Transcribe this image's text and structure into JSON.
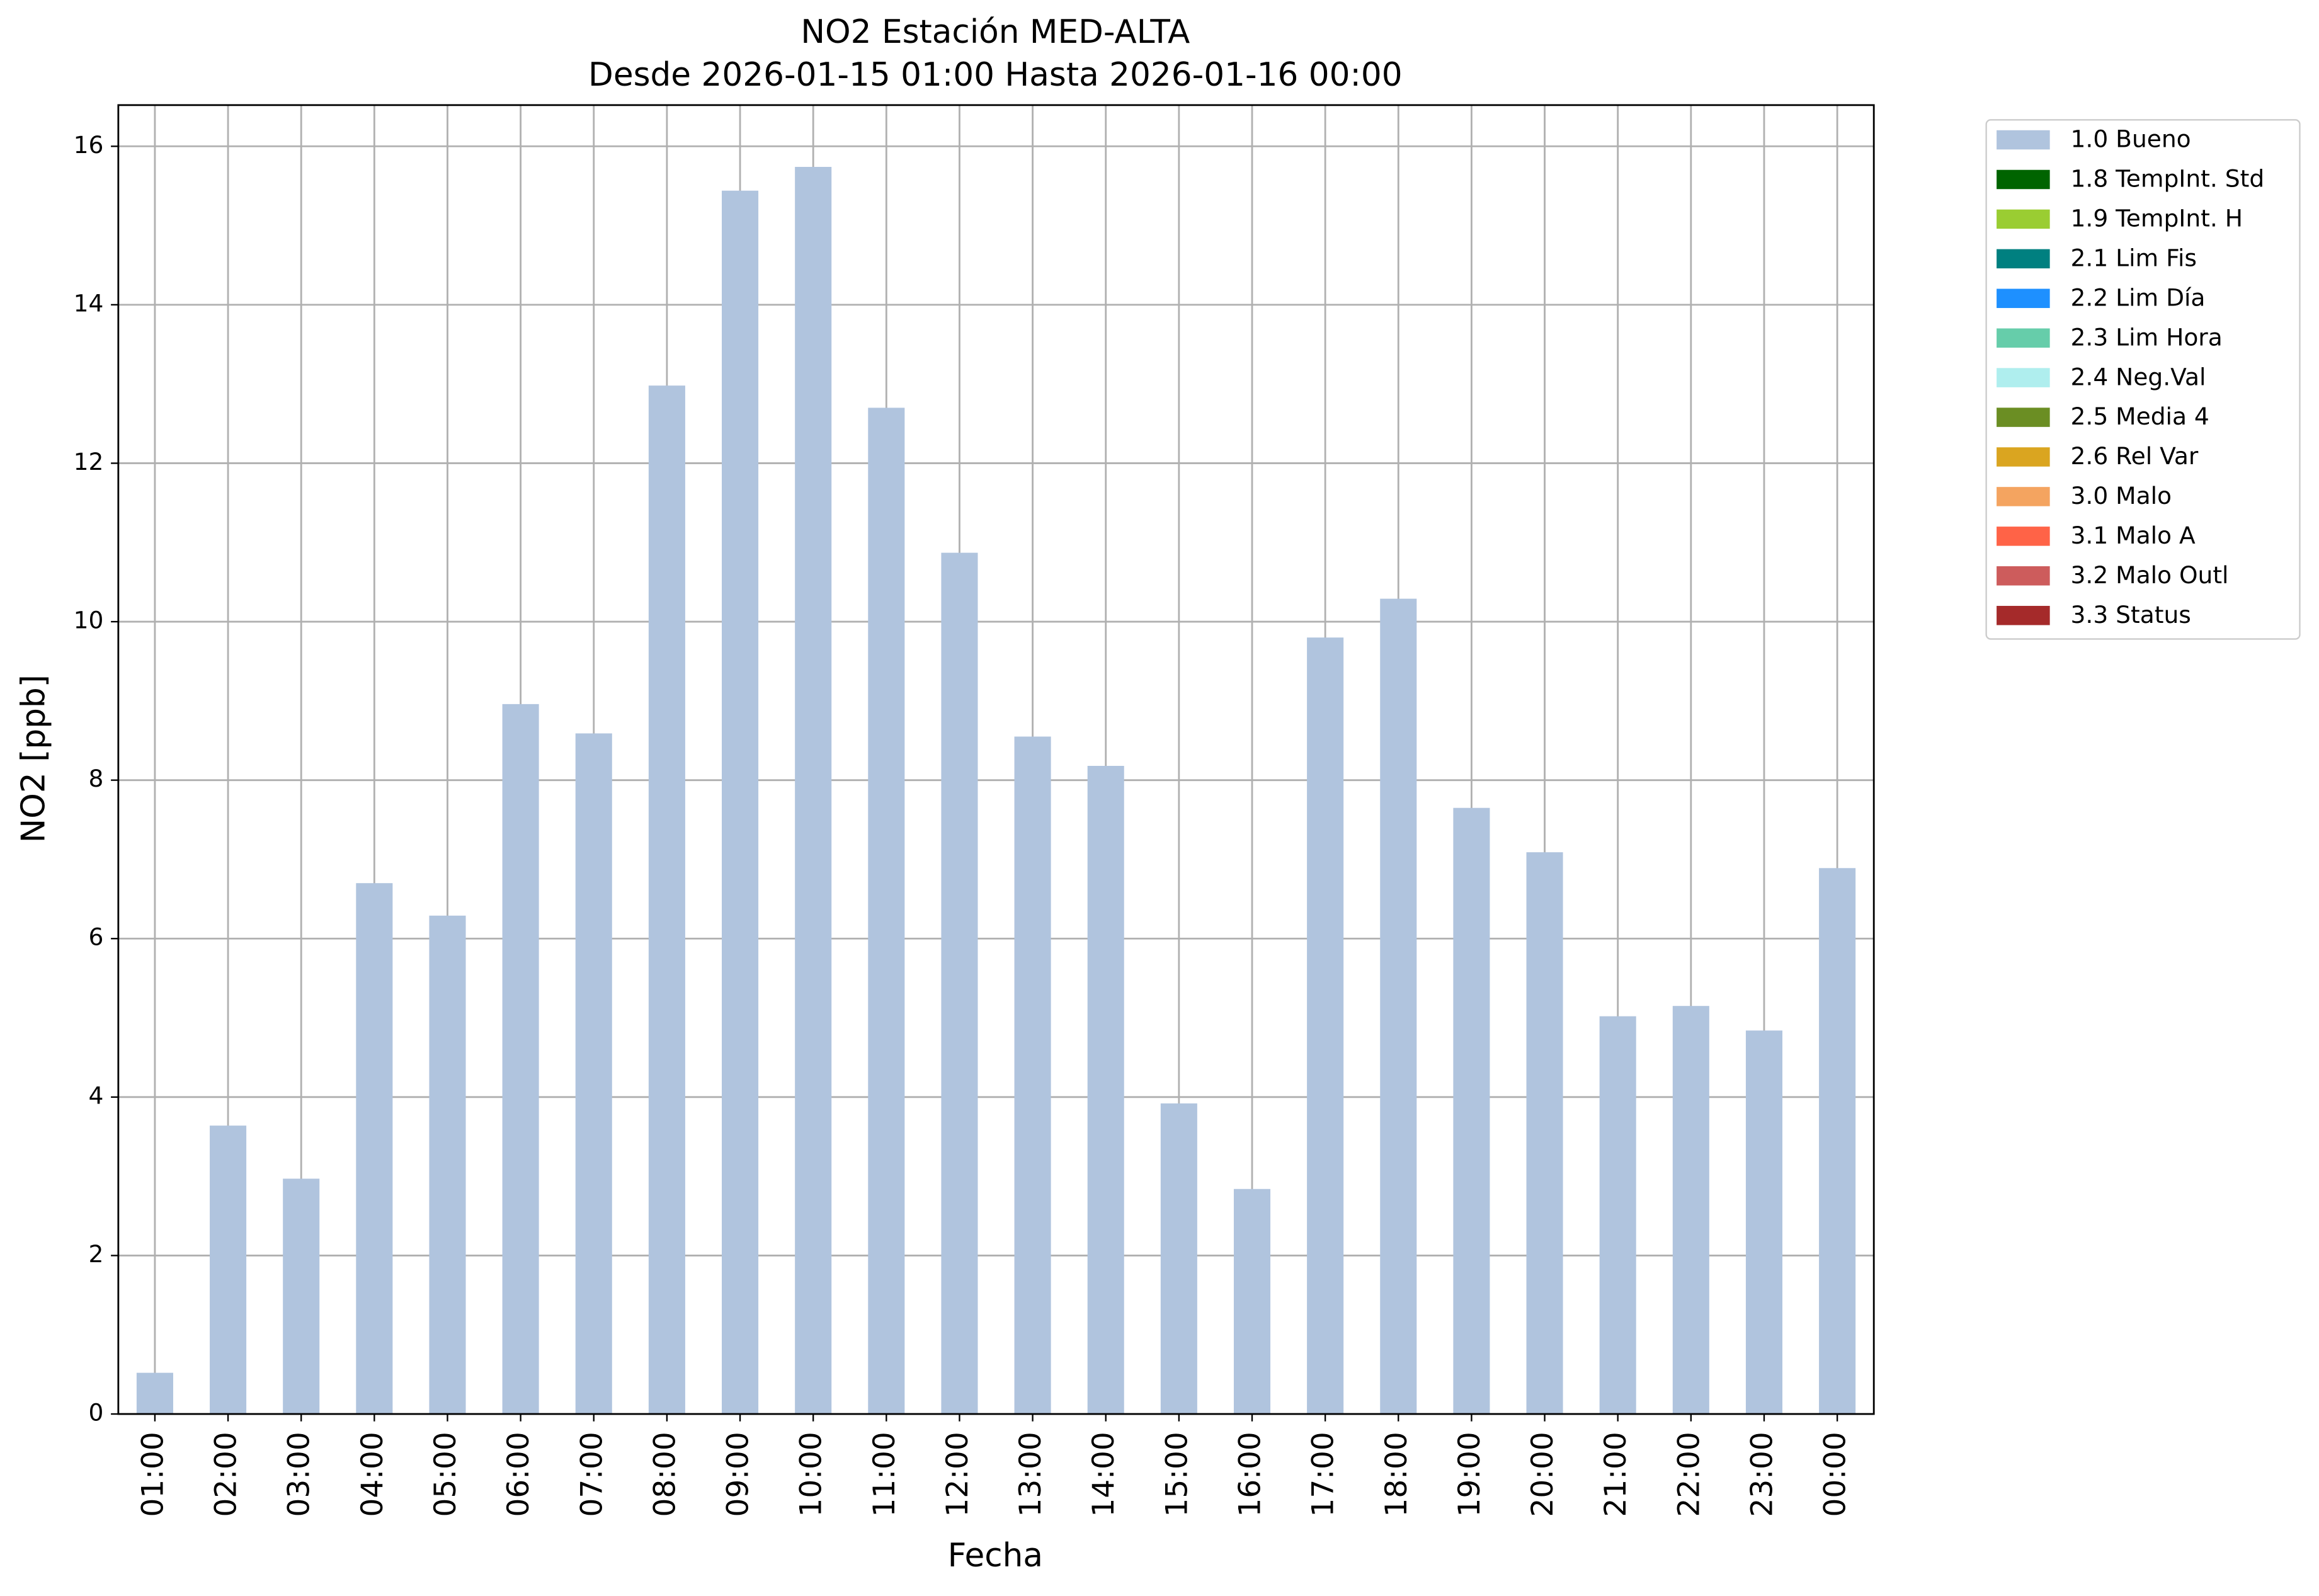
{
  "chart_data": {
    "type": "bar",
    "title": "NO2 Estación MED-ALTA",
    "subtitle": "Desde 2026-01-15 01:00 Hasta 2026-01-16 00:00",
    "x_label": "Fecha",
    "y_label": "NO2 [ppb]",
    "categories": [
      "01:00",
      "02:00",
      "03:00",
      "04:00",
      "05:00",
      "06:00",
      "07:00",
      "08:00",
      "09:00",
      "10:00",
      "11:00",
      "12:00",
      "13:00",
      "14:00",
      "15:00",
      "16:00",
      "17:00",
      "18:00",
      "19:00",
      "20:00",
      "21:00",
      "22:00",
      "23:00",
      "00:00"
    ],
    "series": [
      {
        "name": "1.0 Bueno",
        "color": "#b0c4de",
        "values": [
          0.52,
          3.64,
          2.97,
          6.7,
          6.29,
          8.96,
          8.59,
          12.98,
          15.44,
          15.74,
          12.7,
          10.87,
          8.55,
          8.18,
          3.92,
          2.84,
          9.8,
          10.29,
          7.65,
          7.09,
          5.02,
          5.15,
          4.84,
          6.89
        ]
      },
      {
        "name": "1.8 TempInt. Std",
        "color": "#006400",
        "values": [
          0,
          0,
          0,
          0,
          0,
          0,
          0,
          0,
          0,
          0,
          0,
          0,
          0,
          0,
          0,
          0,
          0,
          0,
          0,
          0,
          0,
          0,
          0,
          0
        ]
      },
      {
        "name": "1.9 TempInt. H",
        "color": "#9acd32",
        "values": [
          0,
          0,
          0,
          0,
          0,
          0,
          0,
          0,
          0,
          0,
          0,
          0,
          0,
          0,
          0,
          0,
          0,
          0,
          0,
          0,
          0,
          0,
          0,
          0
        ]
      },
      {
        "name": "2.1 Lim Fis",
        "color": "#008080",
        "values": [
          0,
          0,
          0,
          0,
          0,
          0,
          0,
          0,
          0,
          0,
          0,
          0,
          0,
          0,
          0,
          0,
          0,
          0,
          0,
          0,
          0,
          0,
          0,
          0
        ]
      },
      {
        "name": "2.2 Lim Día",
        "color": "#1e90ff",
        "values": [
          0,
          0,
          0,
          0,
          0,
          0,
          0,
          0,
          0,
          0,
          0,
          0,
          0,
          0,
          0,
          0,
          0,
          0,
          0,
          0,
          0,
          0,
          0,
          0
        ]
      },
      {
        "name": "2.3 Lim Hora",
        "color": "#66cdaa",
        "values": [
          0,
          0,
          0,
          0,
          0,
          0,
          0,
          0,
          0,
          0,
          0,
          0,
          0,
          0,
          0,
          0,
          0,
          0,
          0,
          0,
          0,
          0,
          0,
          0
        ]
      },
      {
        "name": "2.4 Neg.Val",
        "color": "#afeeee",
        "values": [
          0,
          0,
          0,
          0,
          0,
          0,
          0,
          0,
          0,
          0,
          0,
          0,
          0,
          0,
          0,
          0,
          0,
          0,
          0,
          0,
          0,
          0,
          0,
          0
        ]
      },
      {
        "name": "2.5 Media 4",
        "color": "#6b8e23",
        "values": [
          0,
          0,
          0,
          0,
          0,
          0,
          0,
          0,
          0,
          0,
          0,
          0,
          0,
          0,
          0,
          0,
          0,
          0,
          0,
          0,
          0,
          0,
          0,
          0
        ]
      },
      {
        "name": "2.6 Rel Var",
        "color": "#daa520",
        "values": [
          0,
          0,
          0,
          0,
          0,
          0,
          0,
          0,
          0,
          0,
          0,
          0,
          0,
          0,
          0,
          0,
          0,
          0,
          0,
          0,
          0,
          0,
          0,
          0
        ]
      },
      {
        "name": "3.0 Malo",
        "color": "#f4a460",
        "values": [
          0,
          0,
          0,
          0,
          0,
          0,
          0,
          0,
          0,
          0,
          0,
          0,
          0,
          0,
          0,
          0,
          0,
          0,
          0,
          0,
          0,
          0,
          0,
          0
        ]
      },
      {
        "name": "3.1 Malo A",
        "color": "#ff6347",
        "values": [
          0,
          0,
          0,
          0,
          0,
          0,
          0,
          0,
          0,
          0,
          0,
          0,
          0,
          0,
          0,
          0,
          0,
          0,
          0,
          0,
          0,
          0,
          0,
          0
        ]
      },
      {
        "name": "3.2 Malo Outl",
        "color": "#cd5c5c",
        "values": [
          0,
          0,
          0,
          0,
          0,
          0,
          0,
          0,
          0,
          0,
          0,
          0,
          0,
          0,
          0,
          0,
          0,
          0,
          0,
          0,
          0,
          0,
          0,
          0
        ]
      },
      {
        "name": "3.3 Status",
        "color": "#a52a2a",
        "values": [
          0,
          0,
          0,
          0,
          0,
          0,
          0,
          0,
          0,
          0,
          0,
          0,
          0,
          0,
          0,
          0,
          0,
          0,
          0,
          0,
          0,
          0,
          0,
          0
        ]
      }
    ],
    "ylim": [
      0,
      16.52
    ],
    "yticks": [
      0,
      2,
      4,
      6,
      8,
      10,
      12,
      14,
      16
    ],
    "grid": true,
    "stacked": true,
    "legend": "outside-upper-right"
  }
}
